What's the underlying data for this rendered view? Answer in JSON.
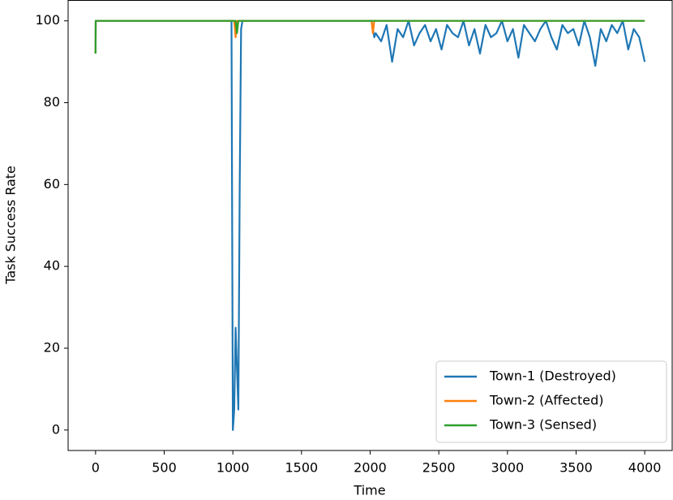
{
  "chart_data": {
    "type": "line",
    "x_label": "Time",
    "y_label": "Task Success Rate",
    "x": [
      0,
      1,
      500,
      990,
      1000,
      1010,
      1020,
      1030,
      1040,
      1050,
      1060,
      1070,
      1500,
      2000,
      2010,
      2020,
      2030,
      2040,
      2080,
      2120,
      2160,
      2200,
      2240,
      2280,
      2320,
      2360,
      2400,
      2440,
      2480,
      2520,
      2560,
      2600,
      2640,
      2680,
      2720,
      2760,
      2800,
      2840,
      2880,
      2920,
      2960,
      3000,
      3040,
      3080,
      3120,
      3160,
      3200,
      3240,
      3280,
      3320,
      3360,
      3400,
      3440,
      3480,
      3520,
      3560,
      3600,
      3640,
      3680,
      3720,
      3760,
      3800,
      3840,
      3880,
      3920,
      3960,
      4000
    ],
    "series": [
      {
        "name": "Town-1 (Destroyed)",
        "color": "#1f77b4",
        "values": [
          92,
          100,
          100,
          100,
          0,
          5,
          25,
          15,
          5,
          60,
          98,
          100,
          100,
          100,
          100,
          98,
          96,
          97,
          95,
          99,
          90,
          98,
          96,
          100,
          94,
          97,
          99,
          95,
          98,
          93,
          99,
          97,
          96,
          100,
          94,
          98,
          92,
          99,
          96,
          97,
          100,
          95,
          98,
          91,
          99,
          97,
          95,
          98,
          100,
          96,
          93,
          99,
          97,
          98,
          94,
          100,
          96,
          89,
          98,
          95,
          99,
          97,
          100,
          93,
          98,
          96,
          90
        ]
      },
      {
        "name": "Town-2 (Affected)",
        "color": "#ff7f0e",
        "values": [
          92,
          100,
          100,
          100,
          100,
          100,
          96,
          100,
          100,
          100,
          100,
          100,
          100,
          100,
          100,
          97,
          100,
          100,
          100,
          100,
          100,
          100,
          100,
          100,
          100,
          100,
          100,
          100,
          100,
          100,
          100,
          100,
          100,
          100,
          100,
          100,
          100,
          100,
          100,
          100,
          100,
          100,
          100,
          100,
          100,
          100,
          100,
          100,
          100,
          100,
          100,
          100,
          100,
          100,
          100,
          100,
          100,
          100,
          100,
          100,
          100,
          100,
          100,
          100,
          100,
          100,
          100
        ]
      },
      {
        "name": "Town-3 (Sensed)",
        "color": "#2ca02c",
        "values": [
          92,
          100,
          100,
          100,
          100,
          100,
          100,
          97,
          100,
          100,
          100,
          100,
          100,
          100,
          100,
          100,
          100,
          100,
          100,
          100,
          100,
          100,
          100,
          100,
          100,
          100,
          100,
          100,
          100,
          100,
          100,
          100,
          100,
          100,
          100,
          100,
          100,
          100,
          100,
          100,
          100,
          100,
          100,
          100,
          100,
          100,
          100,
          100,
          100,
          100,
          100,
          100,
          100,
          100,
          100,
          100,
          100,
          100,
          100,
          100,
          100,
          100,
          100,
          100,
          100,
          100,
          100
        ]
      }
    ],
    "xlim": [
      -200,
      4200
    ],
    "ylim": [
      -5,
      105
    ],
    "xticks": [
      0,
      500,
      1000,
      1500,
      2000,
      2500,
      3000,
      3500,
      4000
    ],
    "yticks": [
      0,
      20,
      40,
      60,
      80,
      100
    ],
    "grid": false,
    "legend": "lower right"
  }
}
